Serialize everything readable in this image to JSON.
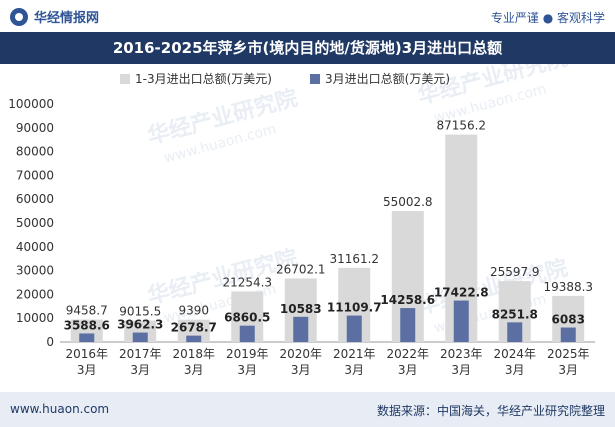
{
  "brand": {
    "name": "华经情报网"
  },
  "header": {
    "slogan": "专业严谨 ● 客观科学"
  },
  "title": "2016-2025年萍乡市(境内目的地/货源地)3月进出口总额",
  "footer": {
    "website": "www.huaon.com",
    "source": "数据来源：中国海关，华经产业研究院整理"
  },
  "watermark": {
    "text": "华经产业研究院",
    "url": "www.huaon.com"
  },
  "colors": {
    "series1": "#d9d9d9",
    "series2": "#5b6fa3",
    "title_bg": "#1f3864",
    "brand": "#2f5597"
  },
  "chart_data": {
    "type": "bar",
    "title": "2016-2025年萍乡市(境内目的地/货源地)3月进出口总额",
    "categories": [
      "2016年\n3月",
      "2017年\n3月",
      "2018年\n3月",
      "2019年\n3月",
      "2020年\n3月",
      "2021年\n3月",
      "2022年\n3月",
      "2023年\n3月",
      "2024年\n3月",
      "2025年\n3月"
    ],
    "series": [
      {
        "name": "1-3月进出口总额(万美元)",
        "values": [
          9458.7,
          9015.5,
          9390,
          21254.3,
          26702.1,
          31161.2,
          55002.8,
          87156.2,
          25597.9,
          19388.3
        ],
        "labels": [
          "9458.7",
          "9015.5",
          "9390",
          "21254.3",
          "26702.1",
          "31161.2",
          "55002.8",
          "87156.2",
          "25597.9",
          "19388.3"
        ]
      },
      {
        "name": "3月进出口总额(万美元)",
        "values": [
          3588.6,
          3962.3,
          2678.7,
          6860.5,
          10583,
          11109.7,
          14258.6,
          17422.8,
          8251.8,
          6083
        ],
        "labels": [
          "3588.6",
          "3962.3",
          "2678.7",
          "6860.5",
          "10583",
          "11109.7",
          "14258.6",
          "17422.8",
          "8251.8",
          "6083"
        ]
      }
    ],
    "ylim": [
      0,
      100000
    ],
    "yticks": [
      0,
      10000,
      20000,
      30000,
      40000,
      50000,
      60000,
      70000,
      80000,
      90000,
      100000
    ],
    "legend": "top",
    "grid": false
  }
}
